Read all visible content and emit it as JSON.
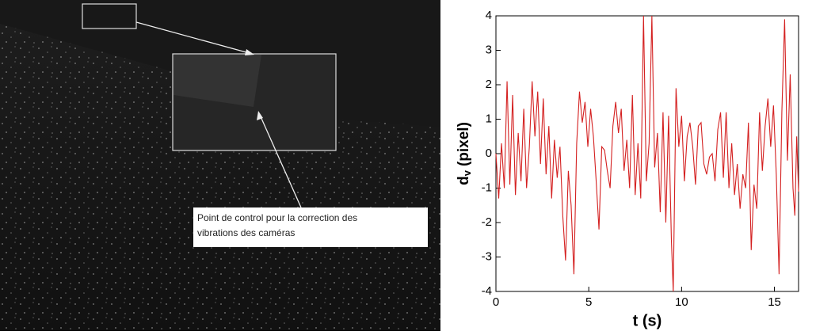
{
  "image_annotation": {
    "lines": [
      "Point de control pour la correction des",
      "vibrations des caméras"
    ]
  },
  "chart_data": {
    "type": "line",
    "xlabel": "t (s)",
    "ylabel_symbol": "d",
    "ylabel_subscript": "v",
    "ylabel_unit": "(pixel)",
    "xlim": [
      0,
      16.3
    ],
    "xticks": [
      0,
      5,
      10,
      15
    ],
    "ylim": [
      -4,
      4
    ],
    "yticks": [
      -4,
      -3,
      -2,
      -1,
      0,
      1,
      2,
      3,
      4
    ],
    "grid": false,
    "x": [
      0,
      0.15,
      0.3,
      0.45,
      0.6,
      0.75,
      0.9,
      1.05,
      1.2,
      1.35,
      1.5,
      1.65,
      1.8,
      1.95,
      2.1,
      2.25,
      2.4,
      2.55,
      2.7,
      2.85,
      3.0,
      3.15,
      3.3,
      3.45,
      3.6,
      3.75,
      3.9,
      4.05,
      4.2,
      4.35,
      4.5,
      4.65,
      4.8,
      4.95,
      5.1,
      5.25,
      5.4,
      5.55,
      5.7,
      5.85,
      6.0,
      6.15,
      6.3,
      6.45,
      6.6,
      6.75,
      6.9,
      7.05,
      7.2,
      7.35,
      7.5,
      7.65,
      7.8,
      7.95,
      8.1,
      8.25,
      8.4,
      8.55,
      8.7,
      8.85,
      9.0,
      9.15,
      9.3,
      9.45,
      9.55,
      9.7,
      9.85,
      10.0,
      10.15,
      10.3,
      10.45,
      10.6,
      10.75,
      10.9,
      11.05,
      11.2,
      11.35,
      11.5,
      11.65,
      11.8,
      11.95,
      12.1,
      12.25,
      12.4,
      12.55,
      12.7,
      12.85,
      13.0,
      13.15,
      13.3,
      13.45,
      13.6,
      13.75,
      13.9,
      14.05,
      14.2,
      14.35,
      14.5,
      14.65,
      14.8,
      14.95,
      15.1,
      15.25,
      15.4,
      15.55,
      15.7,
      15.85,
      16.0,
      16.1,
      16.2,
      16.3
    ],
    "series": [
      {
        "name": "d_v",
        "color": "#d42020",
        "values": [
          0,
          -1.3,
          0.3,
          -1.0,
          2.1,
          -0.9,
          1.7,
          -1.2,
          0.6,
          -0.8,
          1.3,
          -1.0,
          0.2,
          2.1,
          0.5,
          1.8,
          -0.3,
          1.6,
          -0.6,
          0.8,
          -1.3,
          0.4,
          -0.7,
          0.2,
          -1.8,
          -3.1,
          -0.5,
          -1.5,
          -3.5,
          0.3,
          1.8,
          0.9,
          1.5,
          0.2,
          1.3,
          0.5,
          -0.8,
          -2.2,
          0.2,
          0.1,
          -0.5,
          -1.0,
          0.8,
          1.5,
          0.6,
          1.3,
          -0.5,
          0.4,
          -1.0,
          1.7,
          -1.2,
          0.3,
          -1.3,
          4.0,
          -0.8,
          0.3,
          4.0,
          -0.4,
          0.6,
          -1.7,
          1.2,
          -2.0,
          1.1,
          -2.5,
          -4.0,
          1.9,
          0.2,
          1.1,
          -0.8,
          0.5,
          0.9,
          0.2,
          -0.9,
          0.8,
          0.9,
          -0.3,
          -0.6,
          -0.1,
          0.0,
          -0.8,
          0.7,
          1.2,
          -0.7,
          1.2,
          -1.0,
          0.3,
          -1.2,
          -0.3,
          -1.6,
          -0.6,
          -1.0,
          0.9,
          -2.8,
          -0.9,
          -1.6,
          1.2,
          -0.5,
          0.8,
          1.6,
          0.2,
          1.4,
          -0.6,
          -3.5,
          1.2,
          3.9,
          -0.2,
          2.3,
          -1.0,
          -1.8,
          0.5,
          -1.1
        ]
      }
    ]
  }
}
